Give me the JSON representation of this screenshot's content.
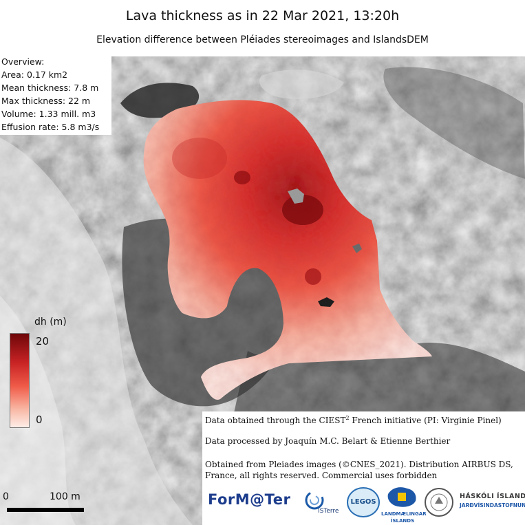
{
  "title": "Lava thickness as in 22 Mar 2021, 13:20h",
  "subtitle": "Elevation difference between Pléiades stereoimages and IslandsDEM",
  "overview": {
    "heading": "Overview:",
    "area": "Area: 0.17 km2",
    "mean": "Mean thickness: 7.8 m",
    "max": "Max thickness: 22 m",
    "volume": "Volume: 1.33 mill. m3",
    "effusion": "Effusion rate: 5.8 m3/s"
  },
  "legend": {
    "title": "dh (m)",
    "max_label": "20",
    "min_label": "0",
    "colors": {
      "high": "#7a0a0c",
      "mid": "#e8423a",
      "low": "#fde8e4"
    }
  },
  "credits": {
    "line1_pre": "Data obtained through the CIEST",
    "line1_sup": "2",
    "line1_post": " French initiative (PI: Virginie Pinel)",
    "line2": "Data processed by Joaquín M.C. Belart & Etienne Berthier",
    "line3": "Obtained from Pleiades images (©CNES_2021). Distribution AIRBUS DS, France, all rights reserved. Commercial uses forbidden"
  },
  "logos": {
    "formater": "ForM@Ter",
    "isterre": "ISTerre",
    "legos": "LEGOS",
    "lmi_line1": "LANDMÆLINGAR",
    "lmi_line2": "ÍSLANDS",
    "hi_line1": "HÁSKÓLI ÍSLANDS",
    "hi_line2": "JARÐVÍSINDASTOFNUN"
  },
  "scale": {
    "zero": "0",
    "label": "100 m"
  }
}
